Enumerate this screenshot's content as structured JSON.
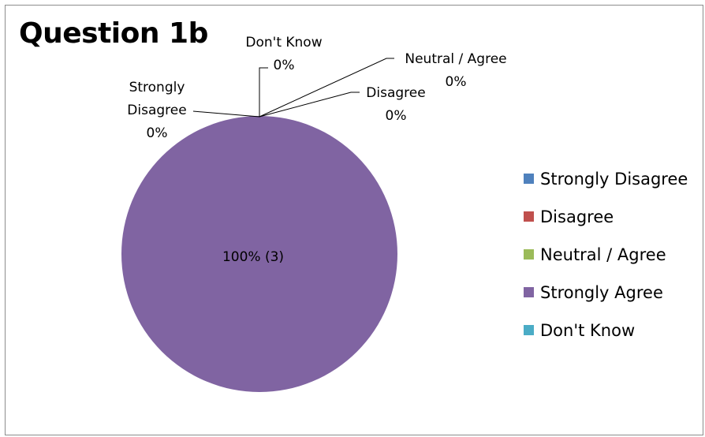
{
  "chart_data": {
    "type": "pie",
    "title": "Question 1b",
    "slices": [
      {
        "label": "Strongly Disagree",
        "value": 0,
        "percent_label": "0%",
        "color": "#4f81bd"
      },
      {
        "label": "Disagree",
        "value": 0,
        "percent_label": "0%",
        "color": "#c0504d"
      },
      {
        "label": "Neutral / Agree",
        "value": 0,
        "percent_label": "0%",
        "color": "#9bbb59"
      },
      {
        "label": "Strongly Agree",
        "value": 3,
        "percent_label": "100% (3)",
        "color": "#8064a2"
      },
      {
        "label": "Don't Know",
        "value": 0,
        "percent_label": "0%",
        "color": "#4bacc6"
      }
    ],
    "legend_position": "right",
    "callout_labels": {
      "strongly_disagree": [
        "Strongly",
        "Disagree",
        "0%"
      ],
      "disagree": [
        "Disagree",
        "0%"
      ],
      "neutral_agree": [
        "Neutral / Agree",
        "0%"
      ],
      "dont_know": [
        "Don't Know",
        "0%"
      ]
    }
  }
}
